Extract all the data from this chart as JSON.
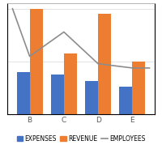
{
  "categories": [
    "B",
    "C",
    "D",
    "E"
  ],
  "expenses": [
    40,
    38,
    32,
    26
  ],
  "revenue": [
    100,
    58,
    95,
    50
  ],
  "employees_x": [
    -0.5,
    0,
    1,
    2,
    3,
    3.5
  ],
  "employees_y": [
    100,
    55,
    78,
    48,
    44,
    44
  ],
  "bar_color_expenses": "#4472C4",
  "bar_color_revenue": "#ED7D31",
  "line_color_employees": "#8C8C8C",
  "background_color": "#FFFFFF",
  "grid_color": "#D9D9D9",
  "legend_expenses": "EXPENSES",
  "legend_revenue": "REVENUE",
  "legend_employees": "EMPLOYEES",
  "ylim": [
    0,
    105
  ],
  "bar_width": 0.38,
  "tick_fontsize": 6.5,
  "legend_fontsize": 5.5
}
